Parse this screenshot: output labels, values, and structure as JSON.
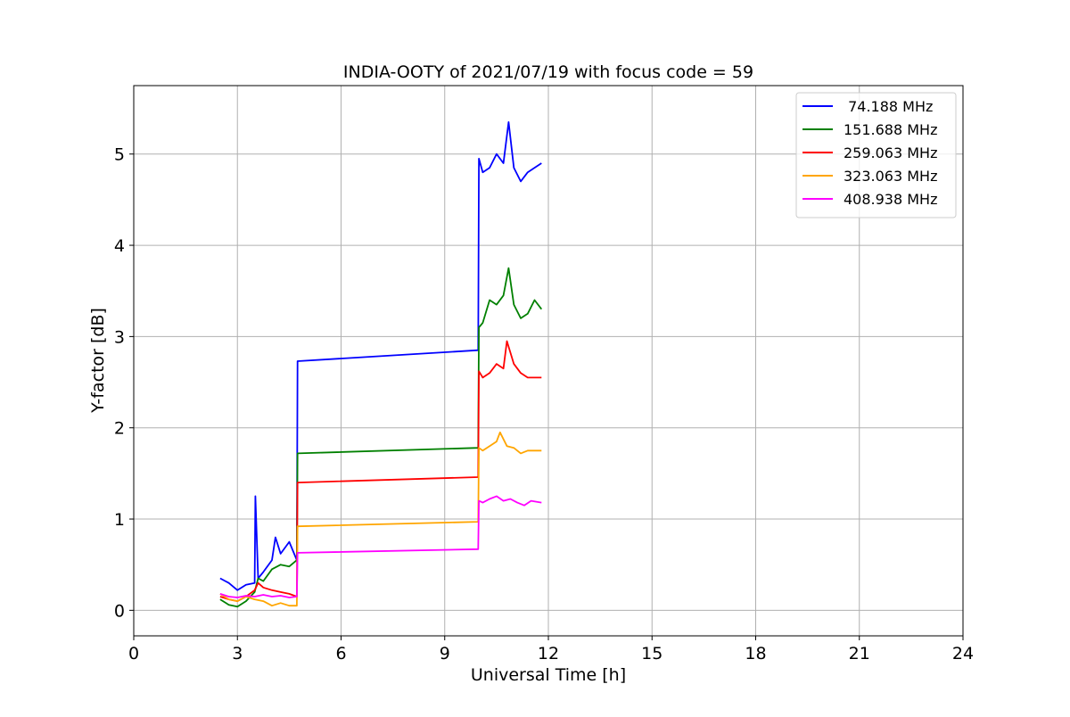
{
  "chart_data": {
    "type": "line",
    "title": "INDIA-OOTY of 2021/07/19 with focus code = 59",
    "xlabel": "Universal Time [h]",
    "ylabel": "Y-factor [dB]",
    "xlim": [
      0,
      24
    ],
    "ylim": [
      -0.28,
      5.75
    ],
    "xticks": [
      0,
      3,
      6,
      9,
      12,
      15,
      18,
      21,
      24
    ],
    "yticks": [
      0,
      1,
      2,
      3,
      4,
      5
    ],
    "grid": true,
    "legend_position": "top-right",
    "series": [
      {
        "name": "74.188 MHz",
        "legend_label": " 74.188 MHz",
        "color": "#0000ff",
        "x": [
          2.5,
          2.75,
          3.0,
          3.25,
          3.5,
          3.52,
          3.6,
          3.75,
          4.0,
          4.1,
          4.25,
          4.5,
          4.72,
          4.74,
          9.97,
          9.99,
          10.1,
          10.3,
          10.5,
          10.7,
          10.85,
          11.0,
          11.2,
          11.4,
          11.6,
          11.8
        ],
        "y": [
          0.35,
          0.3,
          0.22,
          0.28,
          0.3,
          1.25,
          0.35,
          0.42,
          0.55,
          0.8,
          0.62,
          0.75,
          0.55,
          2.73,
          2.85,
          4.95,
          4.8,
          4.85,
          5.0,
          4.9,
          5.35,
          4.85,
          4.7,
          4.8,
          4.85,
          4.9
        ]
      },
      {
        "name": "151.688 MHz",
        "legend_label": "151.688 MHz",
        "color": "#008000",
        "x": [
          2.5,
          2.75,
          3.0,
          3.25,
          3.5,
          3.6,
          3.75,
          4.0,
          4.25,
          4.5,
          4.72,
          4.74,
          9.97,
          9.99,
          10.1,
          10.3,
          10.5,
          10.7,
          10.85,
          11.0,
          11.2,
          11.4,
          11.6,
          11.8
        ],
        "y": [
          0.12,
          0.06,
          0.04,
          0.1,
          0.2,
          0.35,
          0.32,
          0.45,
          0.5,
          0.48,
          0.55,
          1.72,
          1.78,
          3.1,
          3.15,
          3.4,
          3.35,
          3.45,
          3.75,
          3.35,
          3.2,
          3.25,
          3.4,
          3.3
        ]
      },
      {
        "name": "259.063 MHz",
        "legend_label": "259.063 MHz",
        "color": "#ff0000",
        "x": [
          2.5,
          2.75,
          3.0,
          3.25,
          3.5,
          3.6,
          3.75,
          4.0,
          4.25,
          4.5,
          4.72,
          4.74,
          9.97,
          9.99,
          10.1,
          10.3,
          10.5,
          10.7,
          10.8,
          11.0,
          11.2,
          11.4,
          11.6,
          11.8
        ],
        "y": [
          0.15,
          0.12,
          0.1,
          0.15,
          0.22,
          0.3,
          0.25,
          0.22,
          0.2,
          0.18,
          0.15,
          1.4,
          1.46,
          2.62,
          2.55,
          2.6,
          2.7,
          2.65,
          2.95,
          2.7,
          2.6,
          2.55,
          2.55,
          2.55
        ]
      },
      {
        "name": "323.063 MHz",
        "legend_label": "323.063 MHz",
        "color": "#ffa500",
        "x": [
          2.5,
          2.75,
          3.0,
          3.25,
          3.5,
          3.75,
          4.0,
          4.25,
          4.5,
          4.72,
          4.74,
          9.97,
          9.99,
          10.1,
          10.3,
          10.5,
          10.6,
          10.8,
          11.0,
          11.2,
          11.4,
          11.6,
          11.8
        ],
        "y": [
          0.18,
          0.12,
          0.1,
          0.15,
          0.12,
          0.1,
          0.05,
          0.08,
          0.05,
          0.05,
          0.92,
          0.97,
          1.78,
          1.75,
          1.8,
          1.85,
          1.95,
          1.8,
          1.78,
          1.72,
          1.75,
          1.75,
          1.75
        ]
      },
      {
        "name": "408.938 MHz",
        "legend_label": "408.938 MHz",
        "color": "#ff00ff",
        "x": [
          2.5,
          2.75,
          3.0,
          3.25,
          3.5,
          3.75,
          4.0,
          4.25,
          4.5,
          4.72,
          4.74,
          9.97,
          9.99,
          10.1,
          10.3,
          10.5,
          10.7,
          10.9,
          11.1,
          11.3,
          11.5,
          11.8
        ],
        "y": [
          0.18,
          0.15,
          0.14,
          0.16,
          0.15,
          0.17,
          0.15,
          0.16,
          0.14,
          0.15,
          0.63,
          0.67,
          1.2,
          1.18,
          1.22,
          1.25,
          1.2,
          1.22,
          1.18,
          1.15,
          1.2,
          1.18
        ]
      }
    ]
  }
}
